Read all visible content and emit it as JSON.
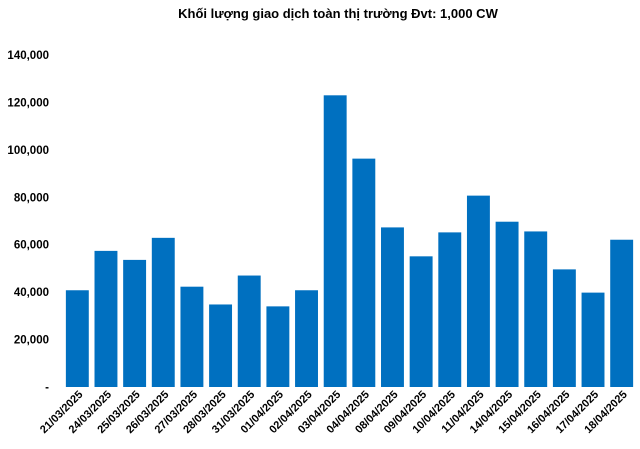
{
  "chart_data": {
    "type": "bar",
    "title": "Khối lượng giao dịch toàn thị trường Đvt: 1,000 CW",
    "xlabel": "",
    "ylabel": "",
    "ylim": [
      0,
      140000
    ],
    "yticks": [
      0,
      20000,
      40000,
      60000,
      80000,
      100000,
      120000,
      140000
    ],
    "ytick_labels": [
      "-",
      "20,000",
      "40,000",
      "60,000",
      "80,000",
      "100,000",
      "120,000",
      "140,000"
    ],
    "categories": [
      "21/03/2025",
      "24/03/2025",
      "25/03/2025",
      "26/03/2025",
      "27/03/2025",
      "28/03/2025",
      "31/03/2025",
      "01/04/2025",
      "02/04/2025",
      "03/04/2025",
      "04/04/2025",
      "08/04/2025",
      "09/04/2025",
      "10/04/2025",
      "11/04/2025",
      "14/04/2025",
      "15/04/2025",
      "16/04/2025",
      "17/04/2025",
      "18/04/2025"
    ],
    "values": [
      40800,
      57400,
      53600,
      62900,
      42300,
      34800,
      47000,
      34000,
      40800,
      123000,
      96300,
      67300,
      55100,
      65200,
      80700,
      69700,
      65600,
      49600,
      39800,
      62100
    ],
    "bar_color": "#0070C0",
    "grid": false,
    "legend": "none"
  }
}
